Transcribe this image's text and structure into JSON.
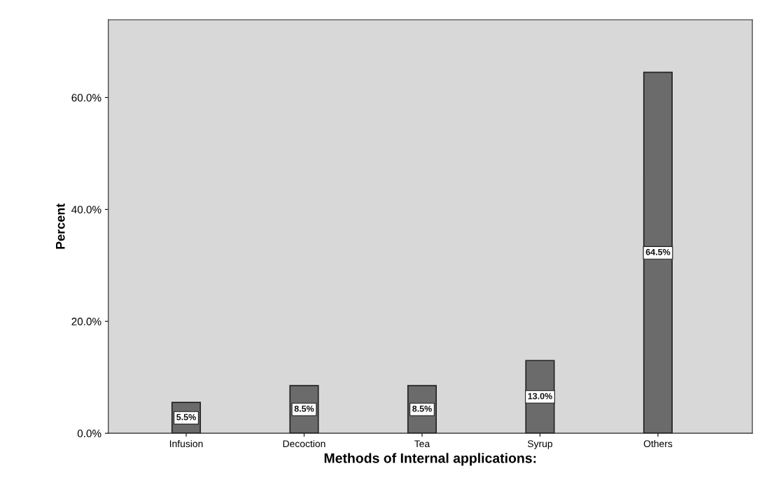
{
  "chart_data": {
    "type": "bar",
    "xlabel": "Methods of Internal applications:",
    "ylabel": "Percent",
    "categories": [
      "Infusion",
      "Decoction",
      "Tea",
      "Syrup",
      "Others"
    ],
    "values": [
      5.5,
      8.5,
      8.5,
      13.0,
      64.5
    ],
    "value_labels": [
      "5.5%",
      "8.5%",
      "8.5%",
      "13.0%",
      "64.5%"
    ],
    "color": "#6b6b6b",
    "ylim": [
      0,
      73.9
    ],
    "yticks": [
      {
        "value": 0,
        "label": "0.0%"
      },
      {
        "value": 20,
        "label": "20.0%"
      },
      {
        "value": 40,
        "label": "40.0%"
      },
      {
        "value": 60,
        "label": "60.0%"
      }
    ],
    "grid": false
  }
}
